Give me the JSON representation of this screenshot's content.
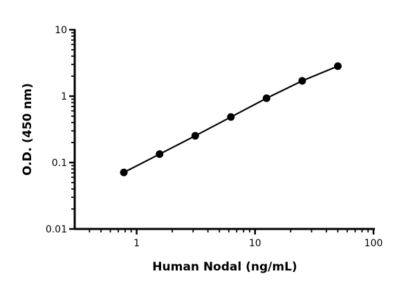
{
  "chart_data": {
    "type": "line",
    "title": "",
    "xlabel": "Human Nodal (ng/mL)",
    "ylabel": "O.D. (450 nm)",
    "x_scale": "log",
    "y_scale": "log",
    "xlim": [
      0.3,
      100
    ],
    "ylim": [
      0.01,
      10
    ],
    "x_ticks": [
      {
        "v": 1,
        "label": "1"
      },
      {
        "v": 10,
        "label": "10"
      },
      {
        "v": 100,
        "label": "100"
      }
    ],
    "y_ticks": [
      {
        "v": 0.01,
        "label": "0.01"
      },
      {
        "v": 0.1,
        "label": "0.1"
      },
      {
        "v": 1,
        "label": "1"
      },
      {
        "v": 10,
        "label": "10"
      }
    ],
    "grid": false,
    "series": [
      {
        "color": "#000000",
        "marker": "circle",
        "x": [
          0.78,
          1.5625,
          3.125,
          6.25,
          12.5,
          25,
          50
        ],
        "y": [
          0.071,
          0.134,
          0.253,
          0.485,
          0.93,
          1.7,
          2.83
        ]
      }
    ]
  }
}
